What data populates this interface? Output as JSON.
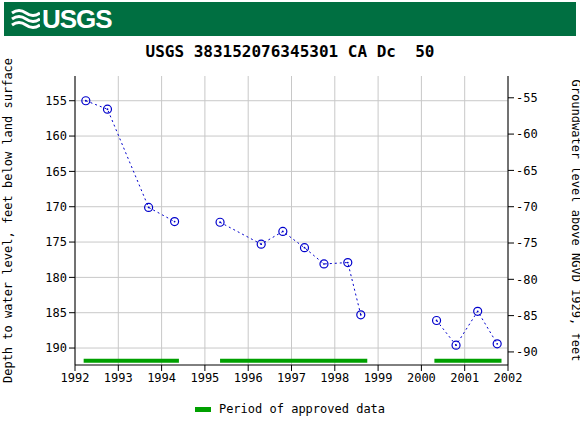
{
  "header": {
    "logo": "USGS"
  },
  "chart_data": {
    "type": "line",
    "title": "USGS 383152076345301 CA Dc  50",
    "y_label": "Depth to water level, feet below land surface",
    "y2_label": "Groundwater level above NGVD 1929, feet",
    "x": [
      1992.25,
      1992.75,
      1993.7,
      1994.3,
      1994.8,
      1995.35,
      1996.3,
      1996.8,
      1997.3,
      1997.75,
      1998.3,
      1998.6,
      1999.5,
      2000.35,
      2000.8,
      2001.3,
      2001.75
    ],
    "series": [
      {
        "color": "#0000cc",
        "marker": "circle",
        "line_style": "dotted",
        "values": [
          155.0,
          156.2,
          170.1,
          172.1,
          null,
          172.2,
          175.3,
          173.5,
          175.8,
          178.1,
          177.9,
          185.3,
          null,
          186.1,
          189.6,
          184.8,
          189.4
        ]
      }
    ],
    "approved_periods": {
      "name": "Period of approved data",
      "color": "#00a000",
      "periods": [
        [
          1992.2,
          1994.4
        ],
        [
          1995.35,
          1998.75
        ],
        [
          2000.3,
          2001.85
        ]
      ]
    },
    "xlim": [
      1992,
      2002
    ],
    "xticks": [
      1992,
      1993,
      1994,
      1995,
      1996,
      1997,
      1998,
      1999,
      2000,
      2001,
      2002
    ],
    "ylim": [
      192.4,
      151.5
    ],
    "yticks": [
      155,
      160,
      165,
      170,
      175,
      180,
      185,
      190
    ],
    "y2lim": [
      -91.8,
      -52.0
    ],
    "y2ticks": [
      -90,
      -85,
      -80,
      -75,
      -70,
      -65,
      -60,
      -55
    ],
    "grid": true,
    "legend": "bottom"
  }
}
